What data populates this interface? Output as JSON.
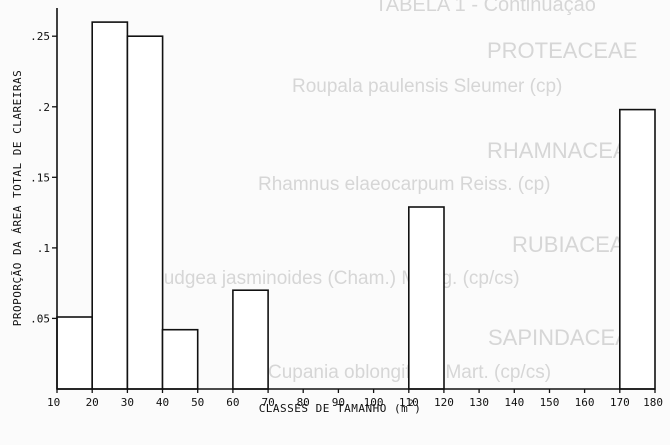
{
  "page": {
    "bleed_through": [
      "TABELA 1 - Continuação",
      "PROTEACEAE",
      "Roupala paulensis Sleumer (cp)",
      "RHAMNACEAE",
      "Rhamnus elaeocarpum Reiss. (cp)",
      "RUBIACEAE",
      "Rudgea jasminoides (Cham.) M.Arg. (cp/cs)",
      "SAPINDACEAE",
      "Cupania oblongifolia Mart. (cp/cs)"
    ]
  },
  "chart_data": {
    "type": "bar",
    "xlabel": "CLASSES DE TAMANHO (m",
    "xlabel_superscript": "2",
    "xlabel_suffix": ")",
    "ylabel": "PROPORÇÃO DA ÁREA TOTAL DE CLAREIRAS",
    "x_ticks": [
      "10",
      "20",
      "30",
      "40",
      "50",
      "60",
      "70",
      "80",
      "90",
      "100",
      "110",
      "120",
      "130",
      "140",
      "150",
      "160",
      "170",
      "180"
    ],
    "y_ticks": [
      ".05",
      ".1",
      ".15",
      ".2",
      ".25"
    ],
    "y_tick_values": [
      0.05,
      0.1,
      0.15,
      0.2,
      0.25
    ],
    "xlim": [
      10,
      180
    ],
    "ylim": [
      0,
      0.27
    ],
    "bars": [
      {
        "x0": 10,
        "x1": 20,
        "value": 0.051
      },
      {
        "x0": 20,
        "x1": 30,
        "value": 0.26
      },
      {
        "x0": 30,
        "x1": 40,
        "value": 0.25
      },
      {
        "x0": 40,
        "x1": 50,
        "value": 0.042
      },
      {
        "x0": 60,
        "x1": 70,
        "value": 0.07
      },
      {
        "x0": 110,
        "x1": 120,
        "value": 0.129
      },
      {
        "x0": 170,
        "x1": 180,
        "value": 0.198
      }
    ],
    "grid": false
  }
}
